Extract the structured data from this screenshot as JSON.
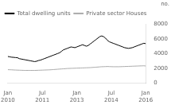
{
  "chart_data": {
    "type": "line",
    "ylabel": "no.",
    "categories": [
      "Jan\n2010",
      null,
      null,
      null,
      null,
      null,
      null,
      null,
      null,
      null,
      null,
      null,
      null,
      null,
      null,
      null,
      null,
      null,
      "Jul\n2011",
      null,
      null,
      null,
      null,
      null,
      null,
      null,
      null,
      null,
      null,
      null,
      null,
      null,
      null,
      null,
      null,
      null,
      "Jan\n2013",
      null,
      null,
      null,
      null,
      null,
      null,
      null,
      null,
      null,
      null,
      null,
      null,
      null,
      null,
      null,
      null,
      null,
      "Jul\n2014",
      null,
      null,
      null,
      null,
      null,
      null,
      null,
      null,
      null,
      null,
      null,
      null,
      null,
      null,
      null,
      null,
      null,
      "Jan\n2016"
    ],
    "series": [
      {
        "name": "Total dwelling units",
        "color": "#000000",
        "values": [
          3600,
          3550,
          3500,
          3480,
          3450,
          3430,
          3300,
          3250,
          3200,
          3150,
          3100,
          3050,
          3000,
          2950,
          2900,
          2950,
          3050,
          3100,
          3200,
          3300,
          3400,
          3500,
          3600,
          3700,
          3800,
          3900,
          4000,
          4100,
          4300,
          4500,
          4600,
          4700,
          4800,
          4900,
          4850,
          4800,
          4900,
          5000,
          5100,
          5200,
          5100,
          5000,
          5100,
          5300,
          5500,
          5700,
          5900,
          6100,
          6300,
          6400,
          6300,
          6100,
          5800,
          5600,
          5500,
          5400,
          5300,
          5200,
          5100,
          5000,
          4900,
          4800,
          4750,
          4700,
          4750,
          4800,
          4900,
          5000,
          5100,
          5200,
          5300,
          5400,
          5350
        ]
      },
      {
        "name": "Private sector Houses",
        "color": "#aaaaaa",
        "values": [
          1800,
          1790,
          1780,
          1760,
          1750,
          1740,
          1730,
          1720,
          1710,
          1700,
          1700,
          1700,
          1700,
          1700,
          1700,
          1710,
          1720,
          1730,
          1740,
          1750,
          1760,
          1770,
          1780,
          1800,
          1820,
          1840,
          1860,
          1880,
          1900,
          1920,
          1940,
          1960,
          1970,
          1980,
          1990,
          2000,
          2010,
          2020,
          2030,
          2040,
          2050,
          2060,
          2070,
          2080,
          2100,
          2120,
          2140,
          2160,
          2180,
          2200,
          2210,
          2220,
          2230,
          2220,
          2210,
          2200,
          2200,
          2200,
          2200,
          2210,
          2220,
          2230,
          2240,
          2250,
          2260,
          2270,
          2280,
          2290,
          2300,
          2310,
          2320,
          2330,
          2300
        ]
      }
    ],
    "ylim": [
      0,
      8000
    ],
    "yticks": [
      0,
      2000,
      4000,
      6000,
      8000
    ],
    "grid": false,
    "legend": "upper left"
  }
}
